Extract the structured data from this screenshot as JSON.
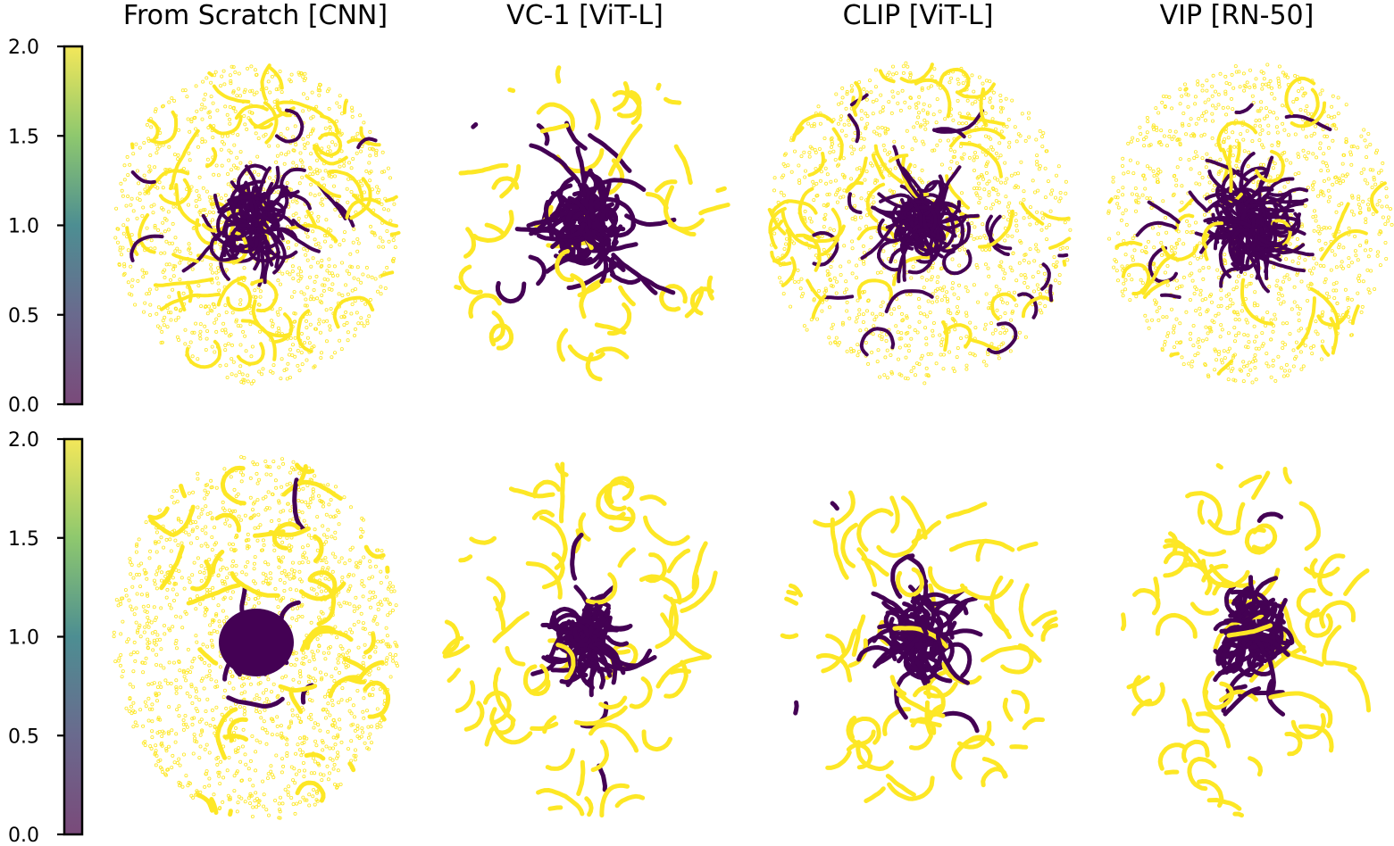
{
  "figure": {
    "titles": [
      "From Scratch [CNN]",
      "VC-1 [ViT-L]",
      "CLIP [ViT-L]",
      "VIP [RN-50]"
    ]
  },
  "chart_data": {
    "type": "scatter",
    "colormap": "viridis",
    "colors": {
      "low": "#440154",
      "mid": "#21918c",
      "high": "#fde725"
    },
    "colorbar": {
      "range": [
        0.0,
        2.0
      ],
      "ticks": [
        "0.0",
        "0.5",
        "1.0",
        "1.5",
        "2.0"
      ]
    },
    "panels": [
      {
        "row": 0,
        "title": "From Scratch [CNN]",
        "style": "sparse-cloud",
        "center_mass": 0.35
      },
      {
        "row": 0,
        "title": "VC-1 [ViT-L]",
        "style": "trajectories",
        "center_mass": 0.45
      },
      {
        "row": 0,
        "title": "CLIP [ViT-L]",
        "style": "sparse-cloud",
        "center_mass": 0.4
      },
      {
        "row": 0,
        "title": "VIP [RN-50]",
        "style": "sparse-cloud",
        "center_mass": 0.45
      },
      {
        "row": 1,
        "title": "From Scratch [CNN]",
        "style": "dense-core",
        "center_mass": 0.15
      },
      {
        "row": 1,
        "title": "VC-1 [ViT-L]",
        "style": "trajectories",
        "center_mass": 0.35
      },
      {
        "row": 1,
        "title": "CLIP [ViT-L]",
        "style": "trajectories",
        "center_mass": 0.3
      },
      {
        "row": 1,
        "title": "VIP [RN-50]",
        "style": "trajectories",
        "center_mass": 0.35
      }
    ]
  }
}
